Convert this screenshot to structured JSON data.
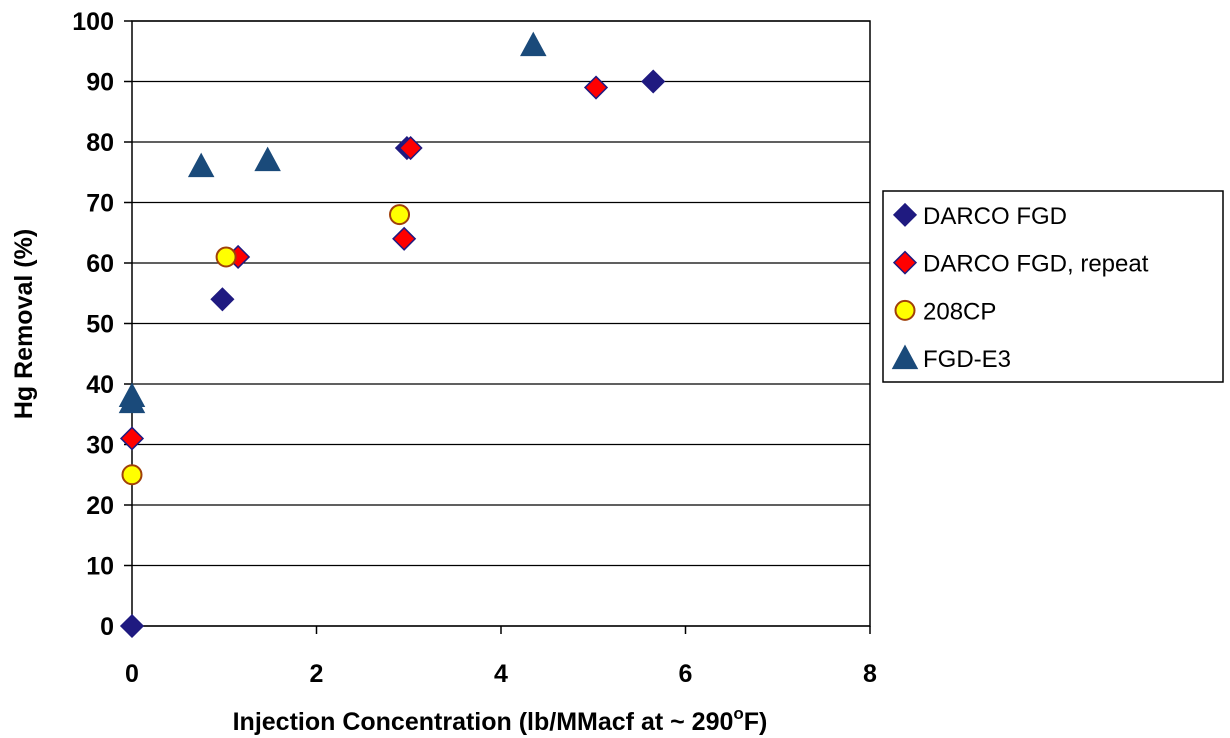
{
  "chart_data": {
    "type": "scatter",
    "title": "",
    "xlabel": {
      "main": "Injection Concentration (lb/MMacf at ~ 290",
      "superscript": "o",
      "suffix": "F)"
    },
    "ylabel": "Hg Removal (%)",
    "xlim": [
      0,
      8
    ],
    "ylim": [
      0,
      100
    ],
    "x_ticks": [
      "0",
      "2",
      "4",
      "6",
      "8"
    ],
    "y_ticks": [
      "0",
      "10",
      "20",
      "30",
      "40",
      "50",
      "60",
      "70",
      "80",
      "90",
      "100"
    ],
    "grid": "horizontal",
    "legend_position": "right",
    "series": [
      {
        "name": "DARCO FGD",
        "marker": "diamond",
        "fill": "#1f1a80",
        "stroke": "#1f1a80",
        "points": [
          [
            0,
            0
          ],
          [
            0.98,
            54
          ],
          [
            2.98,
            79
          ],
          [
            5.65,
            90
          ]
        ]
      },
      {
        "name": "DARCO FGD, repeat",
        "marker": "diamond",
        "fill": "#ff0000",
        "stroke": "#1f1a80",
        "points": [
          [
            0,
            31
          ],
          [
            1.15,
            61
          ],
          [
            2.95,
            64
          ],
          [
            3.02,
            79
          ],
          [
            5.03,
            89
          ]
        ]
      },
      {
        "name": "208CP",
        "marker": "circle",
        "fill": "#ffff00",
        "stroke": "#a0400a",
        "points": [
          [
            0,
            25
          ],
          [
            1.02,
            61
          ],
          [
            2.9,
            68
          ]
        ]
      },
      {
        "name": "FGD-E3",
        "marker": "triangle",
        "fill": "#1a4a7a",
        "stroke": "#1a4a7a",
        "points": [
          [
            0,
            37
          ],
          [
            0,
            38
          ],
          [
            0.75,
            76
          ],
          [
            1.47,
            77
          ],
          [
            4.35,
            96
          ]
        ]
      }
    ]
  }
}
